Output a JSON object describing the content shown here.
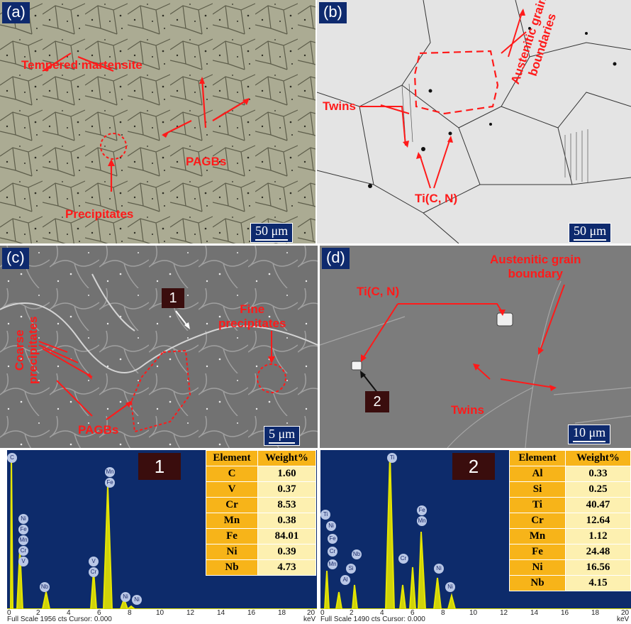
{
  "panels": {
    "a": {
      "label": "(a)",
      "scale": "50 μm",
      "annotations": {
        "tempered": "Tempered martensite",
        "pagbs": "PAGBs",
        "precipitates": "Precipitates"
      }
    },
    "b": {
      "label": "(b)",
      "scale": "50 μm",
      "annotations": {
        "twins": "Twins",
        "austenitic_1": "Austenitic grain",
        "austenitic_2": "boundaries",
        "tic": "Ti(C, N)"
      }
    },
    "c": {
      "label": "(c)",
      "scale": "5 μm",
      "point": "1",
      "annotations": {
        "coarse_1": "Coarse",
        "coarse_2": "precipitates",
        "fine_1": "Fine",
        "fine_2": "precipitates",
        "pagbs": "PAGBs"
      }
    },
    "d": {
      "label": "(d)",
      "scale": "10 μm",
      "point": "2",
      "annotations": {
        "tic": "Ti(C, N)",
        "aus_1": "Austenitic grain",
        "aus_2": "boundary",
        "twins": "Twins"
      }
    }
  },
  "eds1": {
    "point": "1",
    "header": {
      "element": "Element",
      "weight": "Weight%"
    },
    "rows": [
      {
        "element": "C",
        "weight": "1.60"
      },
      {
        "element": "V",
        "weight": "0.37"
      },
      {
        "element": "Cr",
        "weight": "8.53"
      },
      {
        "element": "Mn",
        "weight": "0.38"
      },
      {
        "element": "Fe",
        "weight": "84.01"
      },
      {
        "element": "Ni",
        "weight": "0.39"
      },
      {
        "element": "Nb",
        "weight": "4.73"
      }
    ],
    "peak_labels": [
      "C",
      "Ni",
      "Fe",
      "Mn",
      "Cr",
      "V",
      "Nb",
      "V",
      "Cr",
      "Mn",
      "Fe",
      "Ni",
      "Ni"
    ],
    "ticks": [
      "0",
      "2",
      "4",
      "6",
      "8",
      "10",
      "12",
      "14",
      "16",
      "18",
      "20"
    ],
    "footer_left": "Full Scale 1956 cts Cursor: 0.000",
    "footer_right": "keV"
  },
  "eds2": {
    "point": "2",
    "header": {
      "element": "Element",
      "weight": "Weight%"
    },
    "rows": [
      {
        "element": "Al",
        "weight": "0.33"
      },
      {
        "element": "Si",
        "weight": "0.25"
      },
      {
        "element": "Ti",
        "weight": "40.47"
      },
      {
        "element": "Cr",
        "weight": "12.64"
      },
      {
        "element": "Mn",
        "weight": "1.12"
      },
      {
        "element": "Fe",
        "weight": "24.48"
      },
      {
        "element": "Ni",
        "weight": "16.56"
      },
      {
        "element": "Nb",
        "weight": "4.15"
      }
    ],
    "peak_labels": [
      "Ti",
      "Ni",
      "Fe",
      "Cr",
      "Mn",
      "Nb",
      "Si",
      "Al",
      "Ti",
      "Cr",
      "Fe",
      "Mn",
      "Ni",
      "Ni"
    ],
    "ticks": [
      "0",
      "2",
      "4",
      "6",
      "8",
      "10",
      "12",
      "14",
      "16",
      "18",
      "20"
    ],
    "footer_left": "Full Scale 1490 cts Cursor: 0.000",
    "footer_right": "keV"
  }
}
